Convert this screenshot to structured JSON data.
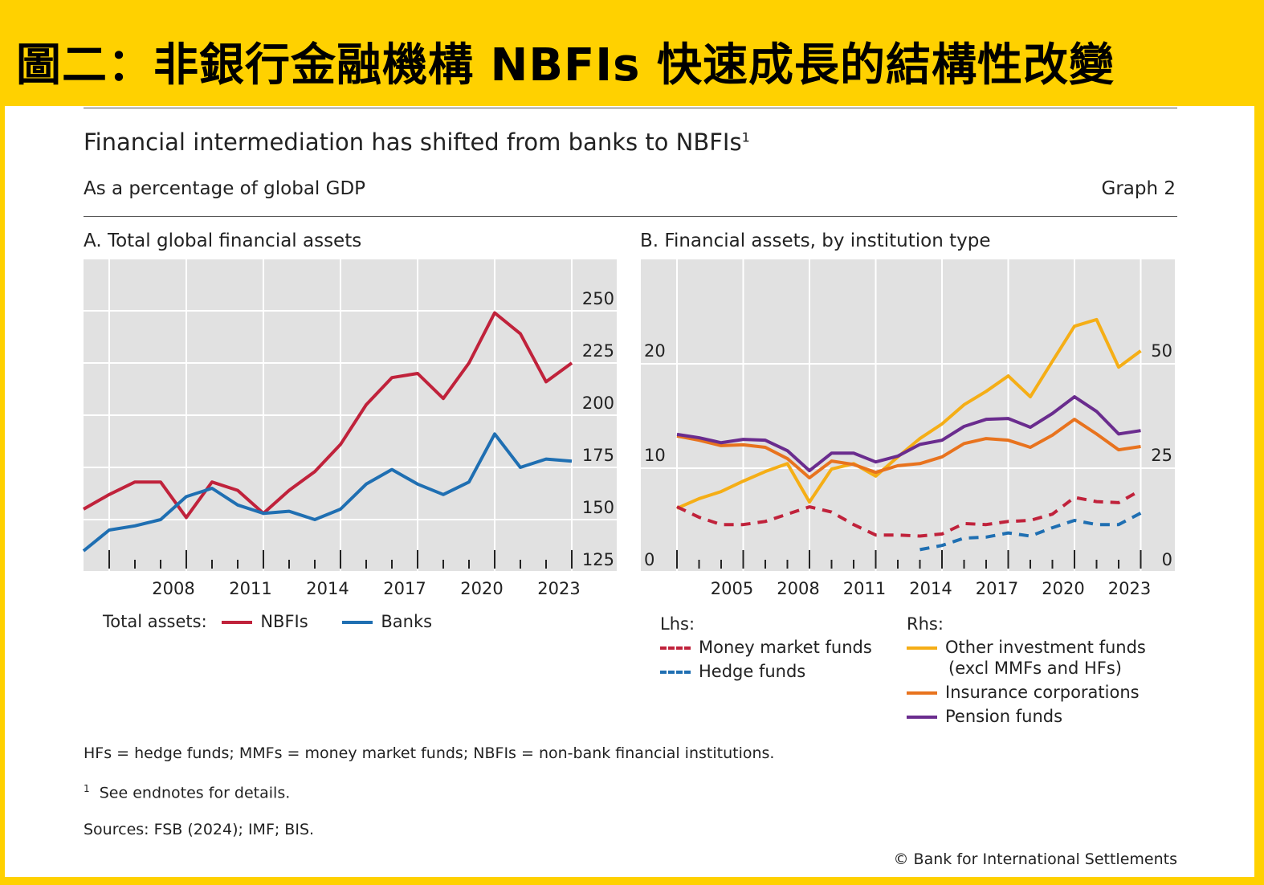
{
  "banner_title": "圖二：非銀行金融機構 NBFIs 快速成長的結構性改變",
  "title": "Financial intermediation has shifted from banks to NBFIs",
  "title_sup": "1",
  "subtitle": "As a percentage of global GDP",
  "graph_label": "Graph 2",
  "footnote_abbrev": "HFs = hedge funds; MMFs = money market funds; NBFIs = non-bank financial institutions.",
  "footnote_1_mark": "1",
  "footnote_1": "See endnotes for details.",
  "sources": "Sources: FSB (2024); IMF; BIS.",
  "copyright": "© Bank for International Settlements",
  "colors": {
    "nbfi": "#C0223B",
    "banks": "#1F6FB2",
    "mmf": "#C0223B",
    "hedge": "#1F6FB2",
    "other": "#F5AE16",
    "insurance": "#E8731E",
    "pension": "#6A2C8E",
    "plot_bg": "#E1E1E1"
  },
  "chart_data": [
    {
      "type": "line",
      "title": "A. Total global financial assets",
      "x": [
        2004,
        2005,
        2006,
        2007,
        2008,
        2009,
        2010,
        2011,
        2012,
        2013,
        2014,
        2015,
        2016,
        2017,
        2018,
        2019,
        2020,
        2021,
        2022,
        2023
      ],
      "x_tick_labels": [
        "2008",
        "2011",
        "2014",
        "2017",
        "2020",
        "2023"
      ],
      "y_axis": "right",
      "ylim": [
        125,
        275
      ],
      "y_ticks": [
        "125",
        "150",
        "175",
        "200",
        "225",
        "250"
      ],
      "legend_title": "Total assets:",
      "grid": true,
      "series": [
        {
          "name": "NBFIs",
          "values": [
            155,
            162,
            168,
            168,
            151,
            168,
            164,
            153,
            164,
            173,
            186,
            205,
            218,
            220,
            208,
            225,
            249,
            239,
            216,
            225
          ]
        },
        {
          "name": "Banks",
          "values": [
            135,
            145,
            147,
            150,
            161,
            165,
            157,
            153,
            154,
            150,
            155,
            167,
            174,
            167,
            162,
            168,
            191,
            175,
            179,
            178
          ]
        }
      ]
    },
    {
      "type": "line",
      "title": "B. Financial assets, by institution type",
      "x": [
        2002,
        2003,
        2004,
        2005,
        2006,
        2007,
        2008,
        2009,
        2010,
        2011,
        2012,
        2013,
        2014,
        2015,
        2016,
        2017,
        2018,
        2019,
        2020,
        2021,
        2022,
        2023
      ],
      "x_tick_labels": [
        "2005",
        "2008",
        "2011",
        "2014",
        "2017",
        "2020",
        "2023"
      ],
      "lhs": {
        "label": "Lhs:",
        "ylim": [
          0,
          30
        ],
        "ticks": [
          "0",
          "10",
          "20"
        ]
      },
      "rhs": {
        "label": "Rhs:",
        "ylim": [
          0,
          75
        ],
        "ticks": [
          "0",
          "25",
          "50"
        ]
      },
      "grid": true,
      "series": [
        {
          "name": "Money market funds",
          "axis": "lhs",
          "style": "dashed",
          "values": [
            6.3,
            5.3,
            4.6,
            4.6,
            4.9,
            5.6,
            6.3,
            5.8,
            4.6,
            3.6,
            3.6,
            3.5,
            3.7,
            4.7,
            4.6,
            4.9,
            5.0,
            5.6,
            7.2,
            6.8,
            6.7,
            7.9
          ]
        },
        {
          "name": "Hedge funds",
          "axis": "lhs",
          "style": "dashed",
          "values": [
            null,
            null,
            null,
            null,
            null,
            null,
            null,
            null,
            null,
            null,
            null,
            2.2,
            2.6,
            3.3,
            3.4,
            3.8,
            3.5,
            4.3,
            5.0,
            4.6,
            4.6,
            5.7
          ]
        },
        {
          "name": "Other investment funds",
          "name_line2": "(excl MMFs and HFs)",
          "axis": "rhs",
          "style": "solid",
          "values": [
            15.4,
            17.7,
            19.4,
            21.9,
            24.2,
            26.1,
            16.9,
            24.8,
            26.1,
            23.1,
            27.7,
            32.1,
            35.6,
            40.2,
            43.4,
            47.1,
            42.1,
            50.6,
            59.0,
            60.6,
            49.2,
            53.1
          ]
        },
        {
          "name": "Insurance corporations",
          "axis": "rhs",
          "style": "solid",
          "values": [
            32.7,
            31.7,
            30.4,
            30.6,
            30.0,
            27.3,
            22.7,
            26.7,
            25.9,
            24.0,
            25.6,
            26.1,
            27.7,
            30.9,
            32.1,
            31.7,
            30.0,
            32.9,
            36.7,
            33.2,
            29.4,
            30.2
          ]
        },
        {
          "name": "Pension funds",
          "axis": "rhs",
          "style": "solid",
          "values": [
            33.1,
            32.3,
            31.1,
            31.9,
            31.7,
            29.2,
            24.4,
            28.6,
            28.6,
            26.5,
            27.9,
            30.7,
            31.7,
            35.0,
            36.7,
            36.9,
            34.8,
            38.1,
            42.1,
            38.6,
            33.2,
            34.0
          ]
        }
      ]
    }
  ]
}
